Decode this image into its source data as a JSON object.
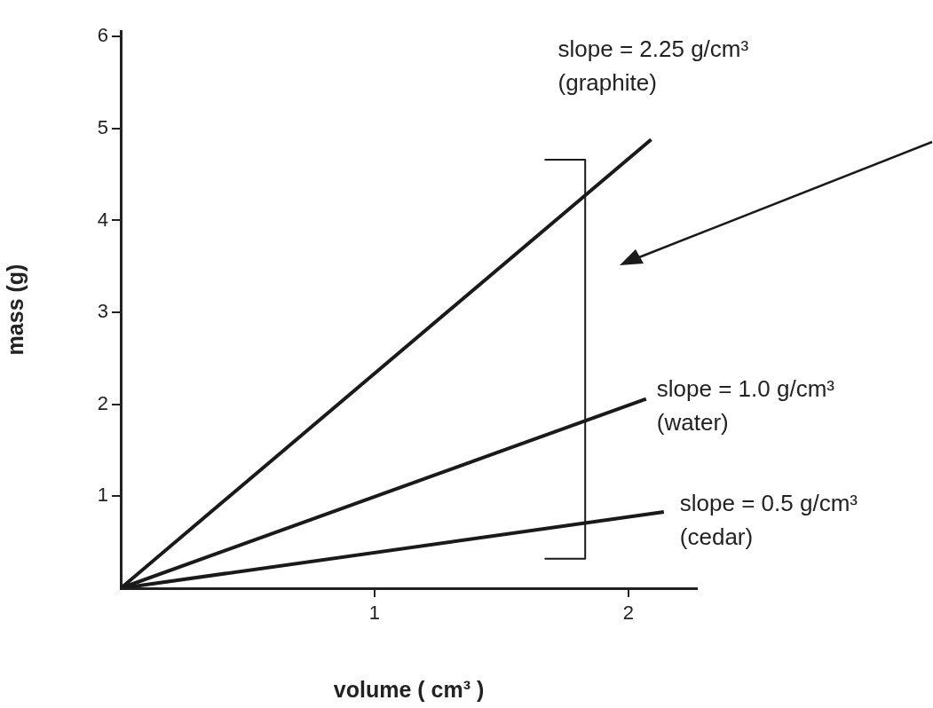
{
  "chart_data": {
    "type": "line",
    "xlabel": "volume ( cm³ )",
    "ylabel": "mass (g)",
    "xlim": [
      0,
      2.27
    ],
    "xticks": [
      1,
      2
    ],
    "ylim": [
      0,
      6.06
    ],
    "yticks": [
      1,
      2,
      3,
      4,
      5,
      6
    ],
    "line_style": "solid",
    "marker": "none",
    "legend": false,
    "series": [
      {
        "color": "#1a1a1a",
        "x": [
          0,
          2.09
        ],
        "values": [
          0,
          4.88
        ]
      },
      {
        "color": "#1a1a1a",
        "x": [
          0,
          2.07
        ],
        "values": [
          0,
          2.06
        ]
      },
      {
        "color": "#1a1a1a",
        "x": [
          0,
          2.14
        ],
        "values": [
          0,
          0.83
        ]
      },
      {
        "color": "#1a1a1a",
        "x": [
          1.67,
          1.83,
          1.83,
          1.67
        ],
        "values": [
          4.66,
          4.66,
          0.32,
          0.32
        ]
      }
    ],
    "annotations": [
      {
        "text": "slope = 2.25 g/cm³\n(graphite)",
        "x": 2.09,
        "y": 4.88
      },
      {
        "text": "slope = 1.0 g/cm³\n(water)",
        "x": 2.07,
        "y": 2.06
      },
      {
        "text": "slope = 0.5 g/cm³\n(cedar)",
        "x": 2.14,
        "y": 0.83
      }
    ]
  }
}
